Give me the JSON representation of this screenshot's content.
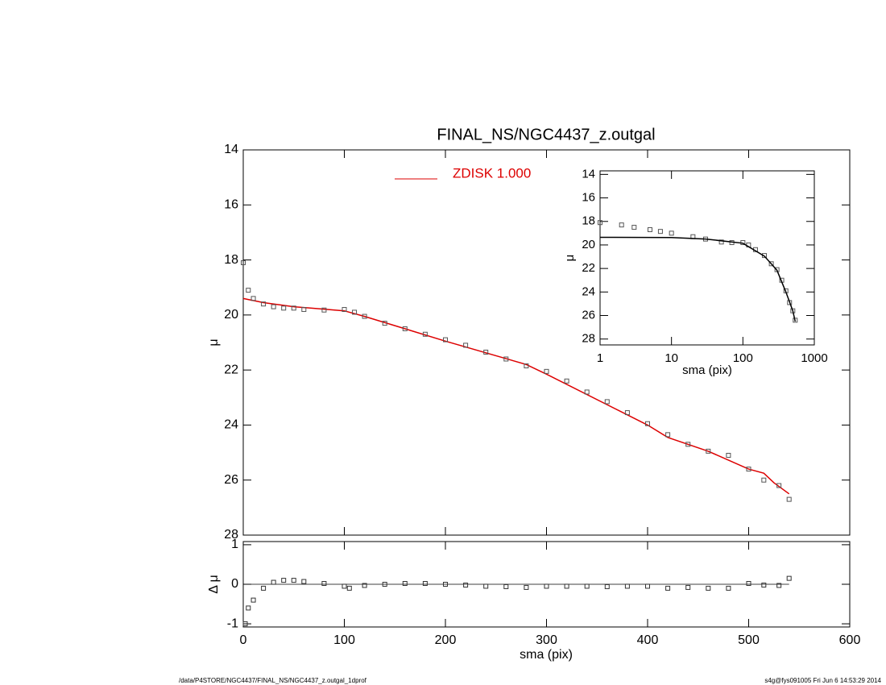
{
  "chart_data": [
    {
      "type": "line",
      "title": "FINAL_NS/NGC4437_z.outgal",
      "ylabel": "μ",
      "xlim": [
        0,
        600
      ],
      "ylim": [
        14,
        28
      ],
      "y_inverted": true,
      "yticks": [
        14,
        16,
        18,
        20,
        22,
        24,
        26,
        28
      ],
      "series": [
        {
          "name": "ZDISK  1.000",
          "color": "#dd0000",
          "style": "line",
          "x": [
            0,
            20,
            50,
            100,
            120,
            200,
            280,
            300,
            400,
            420,
            460,
            500,
            515,
            525,
            540
          ],
          "values": [
            19.4,
            19.55,
            19.7,
            19.85,
            20.05,
            20.95,
            21.8,
            22.15,
            24.0,
            24.45,
            24.95,
            25.6,
            25.75,
            26.1,
            26.5
          ]
        },
        {
          "color": "#555555",
          "style": "points",
          "x": [
            0,
            5,
            10,
            20,
            30,
            40,
            50,
            60,
            80,
            100,
            110,
            120,
            140,
            160,
            180,
            200,
            220,
            240,
            260,
            280,
            300,
            320,
            340,
            360,
            380,
            400,
            420,
            440,
            460,
            480,
            500,
            515,
            530,
            540
          ],
          "values": [
            18.1,
            19.1,
            19.4,
            19.6,
            19.7,
            19.75,
            19.75,
            19.8,
            19.82,
            19.8,
            19.9,
            20.05,
            20.3,
            20.5,
            20.7,
            20.9,
            21.1,
            21.35,
            21.6,
            21.85,
            22.05,
            22.4,
            22.8,
            23.15,
            23.55,
            23.95,
            24.35,
            24.7,
            24.95,
            25.1,
            25.6,
            26.0,
            26.2,
            26.7
          ]
        }
      ]
    },
    {
      "type": "scatter",
      "xlabel": "sma (pix)",
      "ylabel": "Δ μ",
      "xlim": [
        0,
        600
      ],
      "ylim": [
        -1.08,
        1.08
      ],
      "xticks": [
        0,
        100,
        200,
        300,
        400,
        500,
        600
      ],
      "yticks": [
        -1,
        0,
        1
      ],
      "series": [
        {
          "color": "#333333",
          "style": "points",
          "x": [
            2,
            5,
            10,
            20,
            30,
            40,
            50,
            60,
            80,
            100,
            105,
            120,
            140,
            160,
            180,
            200,
            220,
            240,
            260,
            280,
            300,
            320,
            340,
            360,
            380,
            400,
            420,
            440,
            460,
            480,
            500,
            515,
            530,
            540
          ],
          "values": [
            -1.0,
            -0.6,
            -0.4,
            -0.1,
            0.05,
            0.1,
            0.1,
            0.07,
            0.02,
            -0.05,
            -0.1,
            -0.03,
            0,
            0.02,
            0.02,
            0,
            -0.02,
            -0.05,
            -0.06,
            -0.08,
            -0.05,
            -0.05,
            -0.05,
            -0.06,
            -0.05,
            -0.05,
            -0.1,
            -0.08,
            -0.1,
            -0.1,
            0.02,
            -0.02,
            -0.03,
            0.15
          ]
        }
      ]
    },
    {
      "type": "line",
      "xlabel": "sma (pix)",
      "ylabel": "μ",
      "xscale": "log",
      "xlim": [
        1,
        1000
      ],
      "ylim": [
        13.7,
        28.5
      ],
      "y_inverted": true,
      "xticks": [
        1,
        10,
        100,
        1000
      ],
      "yticks": [
        14,
        16,
        18,
        20,
        22,
        24,
        26,
        28
      ],
      "series": [
        {
          "color": "#555555",
          "style": "points",
          "x": [
            1,
            2,
            3,
            5,
            7,
            10,
            20,
            30,
            50,
            70,
            100,
            120,
            150,
            200,
            250,
            300,
            350,
            400,
            450,
            500,
            540
          ],
          "values": [
            18.1,
            18.3,
            18.5,
            18.7,
            18.85,
            19.0,
            19.3,
            19.5,
            19.75,
            19.8,
            19.8,
            20.0,
            20.4,
            20.9,
            21.6,
            22.1,
            23.0,
            23.9,
            24.9,
            25.6,
            26.4
          ]
        },
        {
          "color": "#000000",
          "style": "line",
          "x": [
            1,
            10,
            30,
            100,
            200,
            300,
            400,
            500,
            540
          ],
          "values": [
            19.35,
            19.37,
            19.5,
            19.85,
            20.95,
            22.15,
            24.0,
            25.6,
            26.5
          ]
        }
      ]
    }
  ],
  "footer": {
    "left": "/data/P4STORE/NGC4437/FINAL_NS/NGC4437_z.outgal_1dprof",
    "right": "s4g@fys091005  Fri Jun  6 14:53:29 2014"
  }
}
